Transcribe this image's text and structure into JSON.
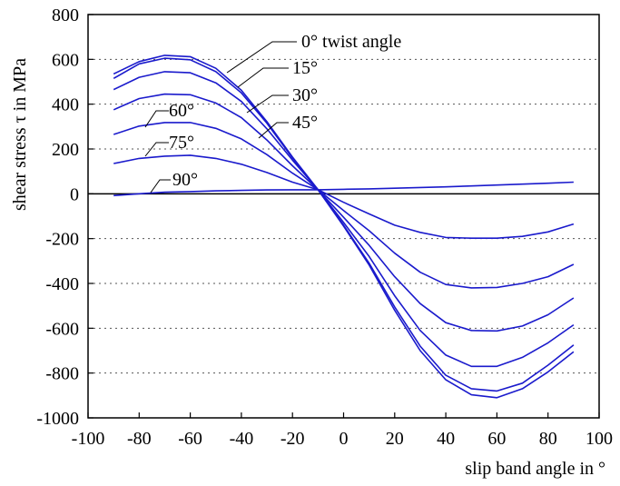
{
  "chart_data": {
    "type": "line",
    "title": "",
    "xlabel": "slip band angle in °",
    "ylabel": "shear stress τ in MPa",
    "xlim": [
      -100,
      100
    ],
    "ylim": [
      -1000,
      800
    ],
    "xticks": [
      -100,
      -80,
      -60,
      -40,
      -20,
      0,
      20,
      40,
      60,
      80,
      100
    ],
    "yticks": [
      800,
      600,
      400,
      200,
      0,
      -200,
      -400,
      -600,
      -800,
      -1000
    ],
    "grid": "horizontal dotted",
    "line_color": "#1a1acc",
    "series": [
      {
        "name": "0° twist angle",
        "x": [
          -90,
          -80,
          -70,
          -60,
          -50,
          -40,
          -30,
          -20,
          -10,
          0,
          10,
          20,
          30,
          40,
          50,
          60,
          70,
          80,
          90
        ],
        "y": [
          535,
          590,
          618,
          612,
          560,
          462,
          322,
          164,
          18,
          -144,
          -318,
          -520,
          -700,
          -830,
          -897,
          -910,
          -870,
          -795,
          -705
        ]
      },
      {
        "name": "15°",
        "x": [
          -90,
          -80,
          -70,
          -60,
          -50,
          -40,
          -30,
          -20,
          -10,
          0,
          10,
          20,
          30,
          40,
          50,
          60,
          70,
          80,
          90
        ],
        "y": [
          515,
          580,
          605,
          598,
          545,
          450,
          315,
          160,
          18,
          -140,
          -310,
          -505,
          -680,
          -810,
          -870,
          -880,
          -845,
          -765,
          -675
        ]
      },
      {
        "name": "30°",
        "x": [
          -90,
          -80,
          -70,
          -60,
          -50,
          -40,
          -30,
          -20,
          -10,
          0,
          10,
          20,
          30,
          40,
          50,
          60,
          70,
          80,
          90
        ],
        "y": [
          465,
          520,
          545,
          540,
          495,
          412,
          290,
          150,
          18,
          -128,
          -280,
          -455,
          -610,
          -720,
          -770,
          -770,
          -730,
          -665,
          -585
        ]
      },
      {
        "name": "45°",
        "x": [
          -90,
          -80,
          -70,
          -60,
          -50,
          -40,
          -30,
          -20,
          -10,
          0,
          10,
          20,
          30,
          40,
          50,
          60,
          70,
          80,
          90
        ],
        "y": [
          375,
          425,
          445,
          442,
          405,
          340,
          240,
          125,
          18,
          -105,
          -230,
          -370,
          -490,
          -575,
          -610,
          -612,
          -590,
          -540,
          -465
        ]
      },
      {
        "name": "60°",
        "x": [
          -90,
          -80,
          -70,
          -60,
          -50,
          -40,
          -30,
          -20,
          -10,
          0,
          10,
          20,
          30,
          40,
          50,
          60,
          70,
          80,
          90
        ],
        "y": [
          265,
          302,
          318,
          318,
          292,
          245,
          175,
          92,
          18,
          -75,
          -165,
          -265,
          -350,
          -405,
          -420,
          -418,
          -400,
          -370,
          -315
        ]
      },
      {
        "name": "75°",
        "x": [
          -90,
          -80,
          -70,
          -60,
          -50,
          -40,
          -30,
          -20,
          -10,
          0,
          10,
          20,
          30,
          40,
          50,
          60,
          70,
          80,
          90
        ],
        "y": [
          135,
          158,
          168,
          172,
          158,
          132,
          95,
          52,
          18,
          -38,
          -90,
          -140,
          -172,
          -195,
          -198,
          -198,
          -190,
          -170,
          -135
        ]
      },
      {
        "name": "90°",
        "x": [
          -90,
          -80,
          -70,
          -60,
          -50,
          -40,
          -30,
          -20,
          -10,
          0,
          10,
          20,
          30,
          40,
          50,
          60,
          70,
          80,
          90
        ],
        "y": [
          -8,
          0,
          7,
          10,
          13,
          15,
          17,
          18,
          18,
          20,
          22,
          25,
          28,
          31,
          35,
          39,
          43,
          47,
          52
        ]
      }
    ]
  }
}
